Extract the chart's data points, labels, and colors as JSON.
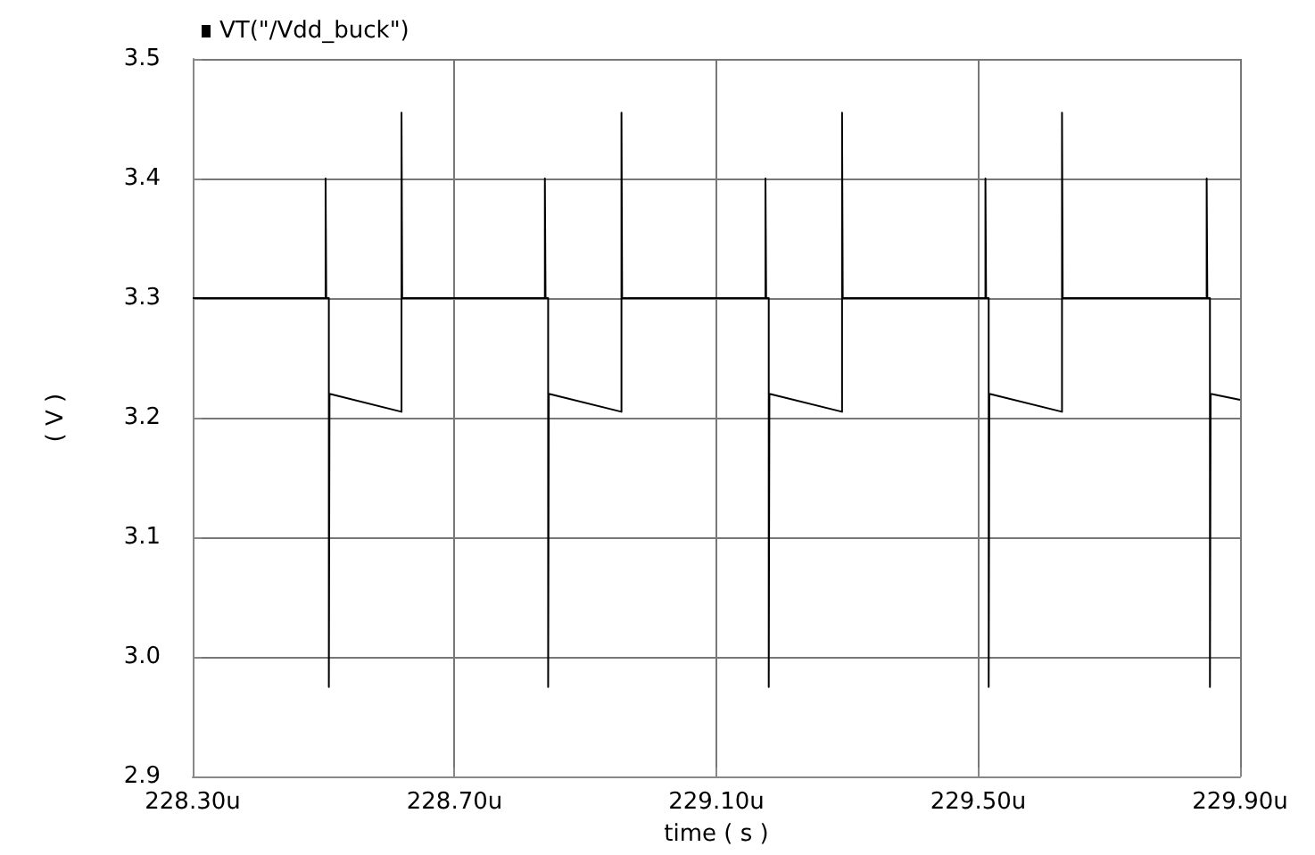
{
  "chart_data": {
    "type": "line",
    "xlabel": "time ( s )",
    "ylabel": "( V )",
    "legend": "top left",
    "grid": true,
    "marker": "none",
    "line_style": "solid",
    "xlim": [
      228.3,
      229.9
    ],
    "xticks": [
      {
        "value": 228.3,
        "label": "228.30u"
      },
      {
        "value": 228.7,
        "label": "228.70u"
      },
      {
        "value": 229.1,
        "label": "229.10u"
      },
      {
        "value": 229.5,
        "label": "229.50u"
      },
      {
        "value": 229.9,
        "label": "229.90u"
      }
    ],
    "ylim": [
      2.9,
      3.5
    ],
    "yticks": [
      2.9,
      {
        "value": 3,
        "label": "3.0"
      },
      3.1,
      3.2,
      3.3,
      3.4,
      3.5
    ],
    "series": [
      {
        "name": "VT(\"/Vdd_buck\")",
        "color": "#000000",
        "x": [
          228.3,
          228.503,
          228.503,
          228.504,
          228.508,
          228.508,
          228.509,
          228.619,
          228.619,
          228.62,
          228.838,
          228.838,
          228.839,
          228.843,
          228.843,
          228.844,
          228.955,
          228.955,
          228.956,
          229.175,
          229.175,
          229.176,
          229.18,
          229.18,
          229.181,
          229.292,
          229.292,
          229.293,
          229.511,
          229.511,
          229.512,
          229.516,
          229.516,
          229.517,
          229.628,
          229.628,
          229.629,
          229.849,
          229.849,
          229.85,
          229.854,
          229.854,
          229.855,
          229.9
        ],
        "values": [
          3.3,
          3.3,
          3.4,
          3.3,
          3.3,
          2.975,
          3.22,
          3.205,
          3.455,
          3.3,
          3.3,
          3.4,
          3.3,
          3.3,
          2.975,
          3.22,
          3.205,
          3.455,
          3.3,
          3.3,
          3.4,
          3.3,
          3.3,
          2.975,
          3.22,
          3.205,
          3.455,
          3.3,
          3.3,
          3.4,
          3.3,
          3.3,
          2.975,
          3.22,
          3.205,
          3.455,
          3.3,
          3.3,
          3.4,
          3.3,
          3.3,
          2.975,
          3.22,
          3.215
        ]
      }
    ]
  }
}
